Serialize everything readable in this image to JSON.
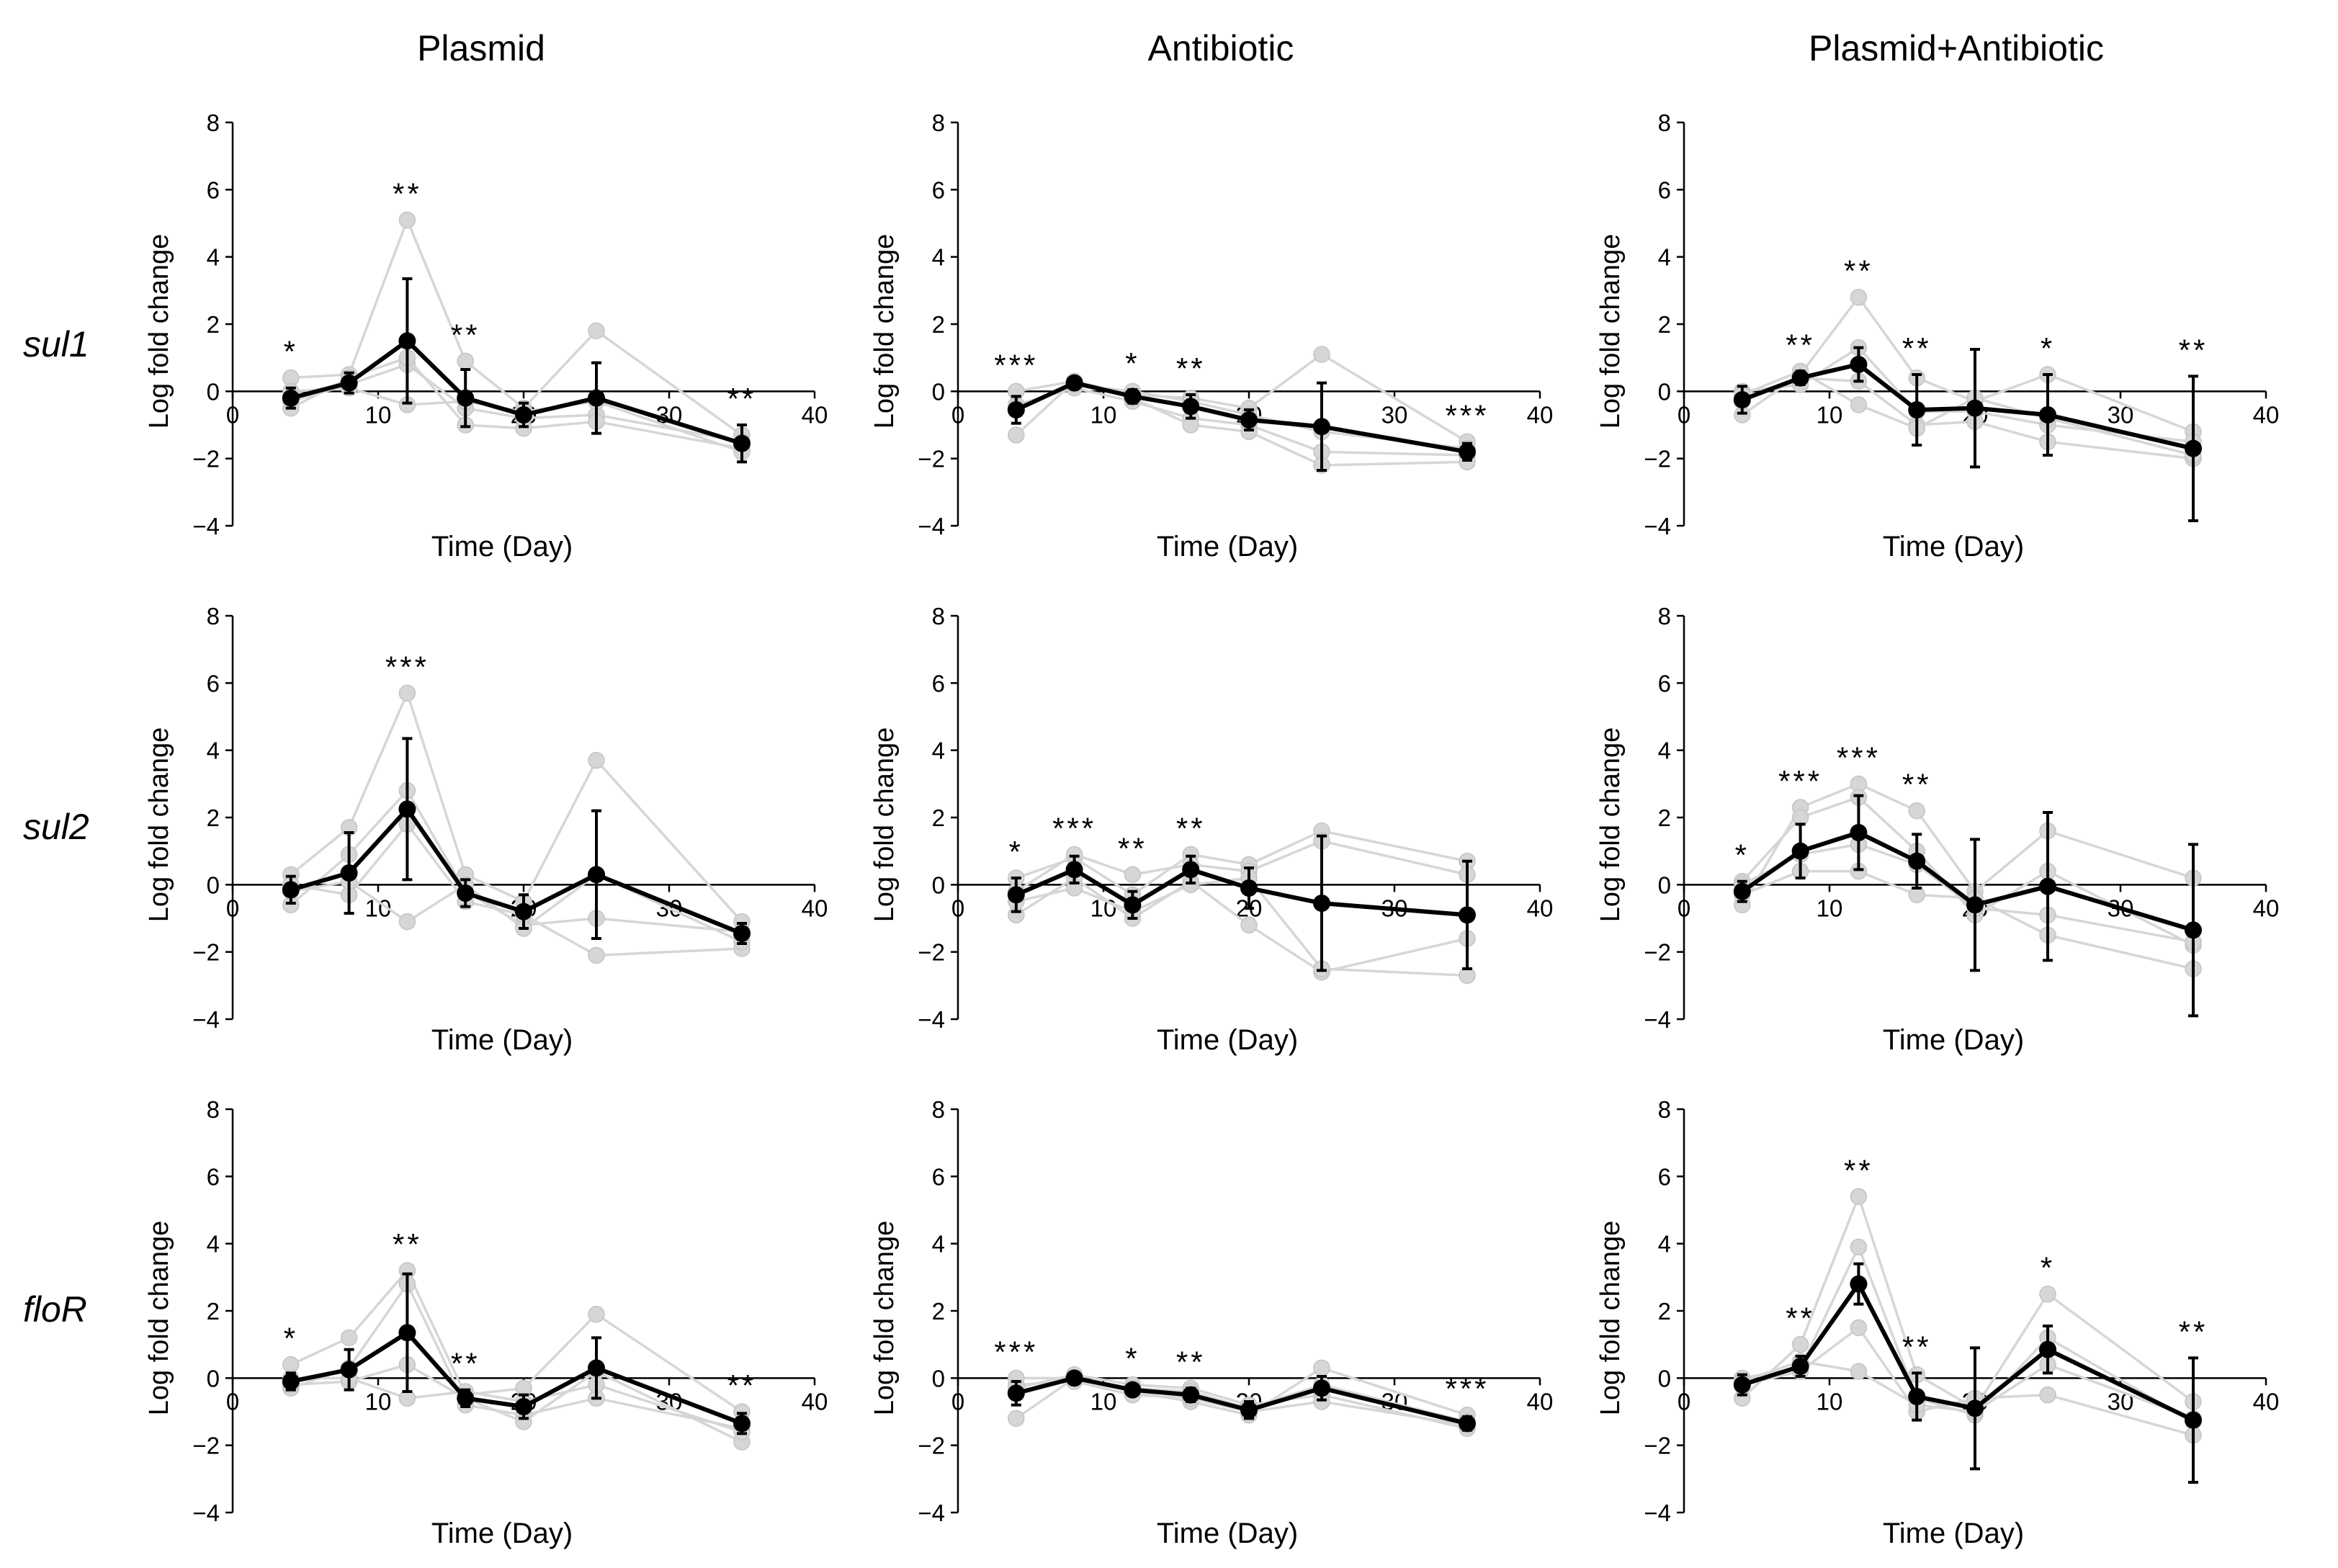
{
  "chart_data": {
    "type": "line",
    "layout": "3x3 grid",
    "column_titles": [
      "Plasmid",
      "Antibiotic",
      "Plasmid+Antibiotic"
    ],
    "row_labels": [
      "sul1",
      "sul2",
      "floR"
    ],
    "xlabel": "Time (Day)",
    "ylabel": "Log fold change",
    "xlim": [
      0,
      40
    ],
    "ylim": [
      -4,
      8
    ],
    "x_ticks": [
      0,
      10,
      20,
      30,
      40
    ],
    "y_ticks": [
      -4,
      -2,
      0,
      2,
      4,
      6,
      8
    ],
    "x": [
      4,
      8,
      12,
      16,
      20,
      25,
      35
    ],
    "colors": {
      "mean": "#000000",
      "replicate": "#d6d6d6"
    },
    "panels": [
      {
        "gene": "sul1",
        "treatment": "Plasmid",
        "mean": [
          -0.2,
          0.25,
          1.5,
          -0.2,
          -0.7,
          -0.2,
          -1.55
        ],
        "err": [
          0.3,
          0.3,
          1.85,
          0.85,
          0.35,
          1.05,
          0.55
        ],
        "reps": [
          [
            0.4,
            0.5,
            5.1,
            0.9,
            -0.5,
            1.8,
            -1.3
          ],
          [
            -0.3,
            0.2,
            0.8,
            -0.5,
            -0.8,
            -0.7,
            -1.5
          ],
          [
            -0.5,
            0.4,
            1.0,
            -1.0,
            -1.1,
            -0.9,
            -1.7
          ],
          [
            0.0,
            0.1,
            -0.4,
            -0.3,
            -0.6,
            -0.3,
            -1.8
          ]
        ],
        "stars": [
          "*",
          "",
          "**",
          "**",
          "",
          "",
          "**"
        ]
      },
      {
        "gene": "sul1",
        "treatment": "Antibiotic",
        "mean": [
          -0.55,
          0.25,
          -0.15,
          -0.45,
          -0.85,
          -1.05,
          -1.8
        ],
        "err": [
          0.4,
          0.15,
          0.2,
          0.35,
          0.3,
          1.3,
          0.25
        ],
        "reps": [
          [
            -1.3,
            0.3,
            -0.1,
            -0.2,
            -0.5,
            1.1,
            -1.5
          ],
          [
            -0.4,
            0.1,
            -0.3,
            -0.8,
            -1.0,
            -1.8,
            -1.9
          ],
          [
            0.0,
            0.3,
            -0.2,
            -1.0,
            -1.2,
            -2.2,
            -2.1
          ],
          [
            -0.5,
            0.2,
            0.0,
            -0.3,
            -0.7,
            -1.2,
            -1.7
          ]
        ],
        "stars": [
          "***",
          "",
          "*",
          "**",
          "",
          "",
          "***"
        ]
      },
      {
        "gene": "sul1",
        "treatment": "Plasmid+Antibiotic",
        "mean": [
          -0.25,
          0.4,
          0.8,
          -0.55,
          -0.5,
          -0.7,
          -1.7
        ],
        "err": [
          0.4,
          0.2,
          0.5,
          1.05,
          1.75,
          1.2,
          2.15
        ],
        "reps": [
          [
            -0.7,
            0.5,
            2.8,
            0.4,
            -0.3,
            0.5,
            -1.2
          ],
          [
            0.0,
            0.2,
            1.3,
            -0.6,
            -0.6,
            -1.0,
            -1.5
          ],
          [
            -0.3,
            0.4,
            0.3,
            -1.0,
            -0.9,
            -1.5,
            -2.0
          ],
          [
            -0.1,
            0.6,
            -0.4,
            -1.1,
            -0.2,
            -0.8,
            -1.9
          ]
        ],
        "stars": [
          "",
          "**",
          "**",
          "**",
          "",
          "*",
          "**"
        ]
      },
      {
        "gene": "sul2",
        "treatment": "Plasmid",
        "mean": [
          -0.15,
          0.35,
          2.25,
          -0.25,
          -0.8,
          0.3,
          -1.45
        ],
        "err": [
          0.4,
          1.2,
          2.1,
          0.4,
          0.5,
          1.9,
          0.3
        ],
        "reps": [
          [
            0.3,
            1.7,
            5.7,
            0.3,
            -0.5,
            3.7,
            -1.1
          ],
          [
            -0.6,
            0.9,
            2.8,
            -0.2,
            -1.2,
            -1.0,
            -1.4
          ],
          [
            0.0,
            -0.3,
            1.8,
            -0.5,
            -0.9,
            -2.1,
            -1.9
          ],
          [
            -0.2,
            0.1,
            -1.1,
            0.0,
            -1.3,
            0.3,
            -1.7
          ]
        ],
        "stars": [
          "",
          "",
          "***",
          "",
          "",
          "",
          ""
        ]
      },
      {
        "gene": "sul2",
        "treatment": "Antibiotic",
        "mean": [
          -0.3,
          0.45,
          -0.6,
          0.45,
          -0.1,
          -0.55,
          -0.9
        ],
        "err": [
          0.5,
          0.4,
          0.4,
          0.4,
          0.6,
          2.0,
          1.6
        ],
        "reps": [
          [
            0.2,
            0.8,
            -0.3,
            0.9,
            0.6,
            1.6,
            0.7
          ],
          [
            -0.9,
            0.2,
            -1.0,
            0.1,
            -1.2,
            -2.6,
            -1.6
          ],
          [
            -0.2,
            0.9,
            0.3,
            0.6,
            0.4,
            1.3,
            0.3
          ],
          [
            -0.5,
            -0.1,
            -0.8,
            0.0,
            0.2,
            -2.5,
            -2.7
          ]
        ],
        "stars": [
          "*",
          "***",
          "**",
          "**",
          "",
          "",
          ""
        ]
      },
      {
        "gene": "sul2",
        "treatment": "Plasmid+Antibiotic",
        "mean": [
          -0.2,
          1.0,
          1.55,
          0.7,
          -0.6,
          -0.05,
          -1.35
        ],
        "err": [
          0.3,
          0.8,
          1.1,
          0.8,
          1.95,
          2.2,
          2.55
        ],
        "reps": [
          [
            -0.6,
            2.3,
            3.0,
            2.2,
            -0.2,
            1.6,
            0.2
          ],
          [
            0.1,
            2.0,
            2.6,
            1.0,
            -0.9,
            0.4,
            -1.8
          ],
          [
            -0.3,
            0.4,
            0.4,
            -0.3,
            -0.4,
            -1.5,
            -2.5
          ],
          [
            0.0,
            0.9,
            1.2,
            0.6,
            -0.7,
            -0.9,
            -1.7
          ]
        ],
        "stars": [
          "*",
          "***",
          "***",
          "**",
          "",
          "",
          ""
        ]
      },
      {
        "gene": "floR",
        "treatment": "Plasmid",
        "mean": [
          -0.1,
          0.25,
          1.35,
          -0.6,
          -0.85,
          0.3,
          -1.35
        ],
        "err": [
          0.25,
          0.6,
          1.75,
          0.25,
          0.35,
          0.9,
          0.3
        ],
        "reps": [
          [
            0.4,
            1.2,
            3.2,
            -0.5,
            -0.3,
            1.9,
            -1.0
          ],
          [
            -0.3,
            0.3,
            2.8,
            -0.8,
            -1.1,
            -0.6,
            -1.5
          ],
          [
            -0.2,
            -0.1,
            0.4,
            -0.6,
            -1.3,
            0.2,
            -1.9
          ],
          [
            0.0,
            0.0,
            -0.6,
            -0.4,
            -0.7,
            -0.2,
            -1.6
          ]
        ],
        "stars": [
          "*",
          "",
          "**",
          "**",
          "",
          "",
          "**"
        ]
      },
      {
        "gene": "floR",
        "treatment": "Antibiotic",
        "mean": [
          -0.45,
          0.0,
          -0.35,
          -0.5,
          -0.95,
          -0.3,
          -1.35
        ],
        "err": [
          0.35,
          0.1,
          0.15,
          0.2,
          0.25,
          0.35,
          0.2
        ],
        "reps": [
          [
            -1.2,
            0.0,
            -0.4,
            -0.7,
            -1.1,
            0.3,
            -1.1
          ],
          [
            -0.3,
            0.1,
            -0.2,
            -0.3,
            -0.8,
            -0.5,
            -1.5
          ],
          [
            -0.2,
            -0.1,
            -0.5,
            -0.6,
            -1.0,
            -0.7,
            -1.4
          ],
          [
            0.0,
            0.0,
            -0.3,
            -0.4,
            -0.9,
            -0.2,
            -1.3
          ]
        ],
        "stars": [
          "***",
          "",
          "*",
          "**",
          "",
          "",
          "***"
        ]
      },
      {
        "gene": "floR",
        "treatment": "Plasmid+Antibiotic",
        "mean": [
          -0.2,
          0.35,
          2.8,
          -0.55,
          -0.9,
          0.85,
          -1.25
        ],
        "err": [
          0.3,
          0.3,
          0.6,
          0.7,
          1.8,
          0.7,
          1.85
        ],
        "reps": [
          [
            -0.6,
            1.0,
            5.4,
            0.1,
            -0.9,
            2.5,
            -0.7
          ],
          [
            0.0,
            0.3,
            3.9,
            -0.6,
            -1.1,
            1.2,
            -1.3
          ],
          [
            -0.2,
            0.2,
            1.5,
            -1.0,
            -0.6,
            -0.5,
            -1.7
          ],
          [
            -0.1,
            0.5,
            0.2,
            -0.8,
            -1.0,
            0.4,
            -1.2
          ]
        ],
        "stars": [
          "",
          "**",
          "**",
          "**",
          "",
          "*",
          "**"
        ]
      }
    ]
  }
}
